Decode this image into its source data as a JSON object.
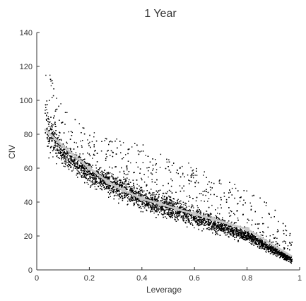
{
  "chart_data": {
    "type": "scatter",
    "title": "1 Year",
    "xlabel": "Leverage",
    "ylabel": "CIV",
    "xlim": [
      0,
      1
    ],
    "ylim": [
      0,
      140
    ],
    "x_ticks": [
      0,
      0.2,
      0.4,
      0.6,
      0.8,
      1
    ],
    "x_tick_labels": [
      "0",
      "0.2",
      "0.4",
      "0.6",
      "0.8",
      "1"
    ],
    "y_ticks": [
      0,
      20,
      40,
      60,
      80,
      100,
      120,
      140
    ],
    "y_tick_labels": [
      "0",
      "20",
      "40",
      "60",
      "80",
      "100",
      "120",
      "140"
    ],
    "grid": false,
    "series": [
      {
        "kind": "scatter",
        "color": "#000000",
        "description_points": "dense cloud of individual observations",
        "shape_profile": [
          {
            "x": 0.03,
            "lower": 70,
            "center": 90,
            "upper": 125
          },
          {
            "x": 0.05,
            "lower": 63,
            "center": 80,
            "upper": 115
          },
          {
            "x": 0.1,
            "lower": 58,
            "center": 68,
            "upper": 95
          },
          {
            "x": 0.2,
            "lower": 47,
            "center": 57,
            "upper": 82
          },
          {
            "x": 0.3,
            "lower": 39,
            "center": 49,
            "upper": 78
          },
          {
            "x": 0.4,
            "lower": 33,
            "center": 42,
            "upper": 75
          },
          {
            "x": 0.5,
            "lower": 28,
            "center": 37,
            "upper": 70
          },
          {
            "x": 0.6,
            "lower": 23,
            "center": 31,
            "upper": 62
          },
          {
            "x": 0.7,
            "lower": 19,
            "center": 26,
            "upper": 55
          },
          {
            "x": 0.8,
            "lower": 15,
            "center": 20,
            "upper": 48
          },
          {
            "x": 0.9,
            "lower": 8,
            "center": 12,
            "upper": 38
          },
          {
            "x": 0.97,
            "lower": 3,
            "center": 6,
            "upper": 20
          }
        ]
      },
      {
        "kind": "line",
        "color": "#c8c8c8",
        "x": [
          0.03,
          0.1,
          0.2,
          0.27,
          0.33,
          0.4,
          0.47,
          0.53,
          0.6,
          0.67,
          0.8,
          0.97
        ],
        "values": [
          83,
          73,
          60,
          52,
          47,
          42,
          39,
          36,
          33,
          30,
          24,
          8
        ],
        "markers": [
          false,
          false,
          true,
          true,
          true,
          true,
          true,
          true,
          true,
          true,
          true,
          false
        ]
      }
    ]
  }
}
